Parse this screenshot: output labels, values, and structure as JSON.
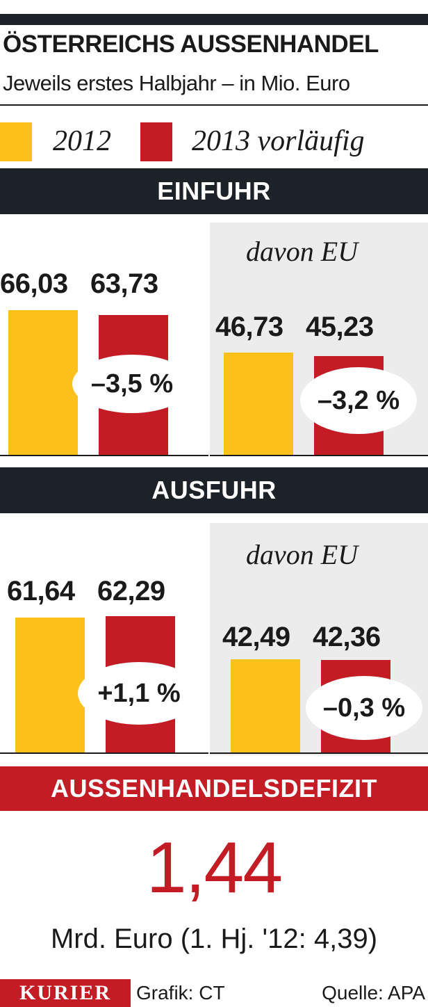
{
  "title": "ÖSTERREICHS AUSSENHANDEL",
  "subtitle": "Jeweils erstes Halbjahr – in Mio. Euro",
  "legend": [
    {
      "label": "2012",
      "color": "#fbc01a"
    },
    {
      "label": "2013 vorläufig",
      "color": "#c41c25"
    }
  ],
  "sections": {
    "einfuhr": {
      "title": "EINFUHR"
    },
    "ausfuhr": {
      "title": "AUSFUHR"
    },
    "davon_label": "davon EU"
  },
  "chart_data": [
    {
      "type": "bar",
      "title": "EINFUHR",
      "categories": [
        "2012",
        "2013 vorläufig"
      ],
      "values": [
        66.03,
        63.73
      ],
      "value_labels": [
        "66,03",
        "63,73"
      ],
      "change_label": "–3,5 %"
    },
    {
      "type": "bar",
      "title": "davon EU",
      "categories": [
        "2012",
        "2013 vorläufig"
      ],
      "values": [
        46.73,
        45.23
      ],
      "value_labels": [
        "46,73",
        "45,23"
      ],
      "change_label": "–3,2 %"
    },
    {
      "type": "bar",
      "title": "AUSFUHR",
      "categories": [
        "2012",
        "2013 vorläufig"
      ],
      "values": [
        61.64,
        62.29
      ],
      "value_labels": [
        "61,64",
        "62,29"
      ],
      "change_label": "+1,1 %"
    },
    {
      "type": "bar",
      "title": "davon EU",
      "categories": [
        "2012",
        "2013 vorläufig"
      ],
      "values": [
        42.49,
        42.36
      ],
      "value_labels": [
        "42,49",
        "42,36"
      ],
      "change_label": "–0,3 %"
    }
  ],
  "deficit": {
    "title": "AUSSENHANDELSDEFIZIT",
    "value": "1,44",
    "note": "Mrd. Euro (1. Hj. '12: 4,39)"
  },
  "footer": {
    "brand": "KURIER",
    "credit": "Grafik: CT",
    "source": "Quelle: APA"
  }
}
